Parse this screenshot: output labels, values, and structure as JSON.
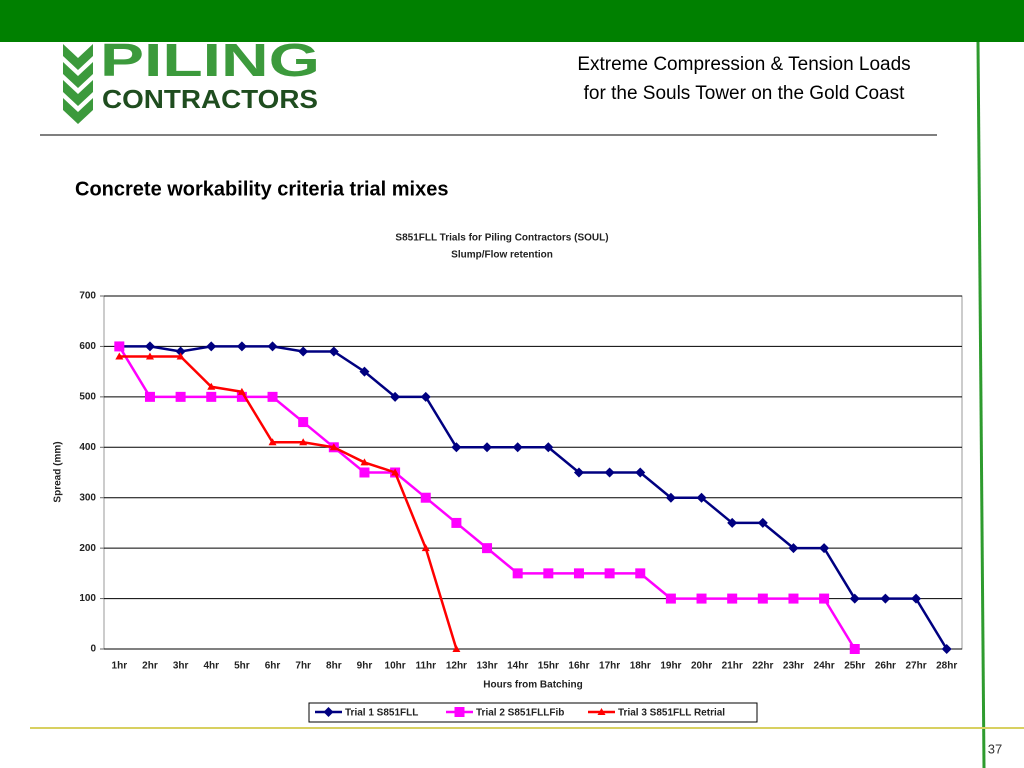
{
  "logo": {
    "line1": "PILING",
    "line2": "CONTRACTORS"
  },
  "header": {
    "title_line1": "Extreme Compression & Tension Loads",
    "title_line2": "for the Souls Tower on the Gold Coast"
  },
  "subtitle": "Concrete workability criteria trial mixes",
  "page_number": "37",
  "chart_data": {
    "type": "line",
    "title": "S851FLL Trials for Piling Contractors (SOUL)",
    "subtitle": "Slump/Flow retention",
    "x_label": "Hours from Batching",
    "y_label": "Spread (mm)",
    "categories": [
      "1hr",
      "2hr",
      "3hr",
      "4hr",
      "5hr",
      "6hr",
      "7hr",
      "8hr",
      "9hr",
      "10hr",
      "11hr",
      "12hr",
      "13hr",
      "14hr",
      "15hr",
      "16hr",
      "17hr",
      "18hr",
      "19hr",
      "20hr",
      "21hr",
      "22hr",
      "23hr",
      "24hr",
      "25hr",
      "26hr",
      "27hr",
      "28hr"
    ],
    "series": [
      {
        "name": "Trial 1 S851FLL",
        "color": "#000080",
        "marker": "diamond",
        "values": [
          600,
          600,
          590,
          600,
          600,
          600,
          590,
          590,
          550,
          500,
          500,
          400,
          400,
          400,
          400,
          350,
          350,
          350,
          300,
          300,
          250,
          250,
          200,
          200,
          100,
          100,
          100,
          0
        ]
      },
      {
        "name": "Trial 2 S851FLLFib",
        "color": "#ff00ff",
        "marker": "square",
        "values": [
          600,
          500,
          500,
          500,
          500,
          500,
          450,
          400,
          350,
          350,
          300,
          250,
          200,
          150,
          150,
          150,
          150,
          150,
          100,
          100,
          100,
          100,
          100,
          100,
          0,
          null,
          null,
          null
        ]
      },
      {
        "name": "Trial 3 S851FLL Retrial",
        "color": "#ff0000",
        "marker": "triangle",
        "values": [
          580,
          580,
          580,
          520,
          510,
          410,
          410,
          400,
          370,
          350,
          200,
          0,
          null,
          null,
          null,
          null,
          null,
          null,
          null,
          null,
          null,
          null,
          null,
          null,
          null,
          null,
          null,
          null
        ]
      }
    ],
    "ylim": [
      0,
      700
    ],
    "yticks": [
      0,
      100,
      200,
      300,
      400,
      500,
      600,
      700
    ],
    "grid": true,
    "legend": "bottom"
  }
}
